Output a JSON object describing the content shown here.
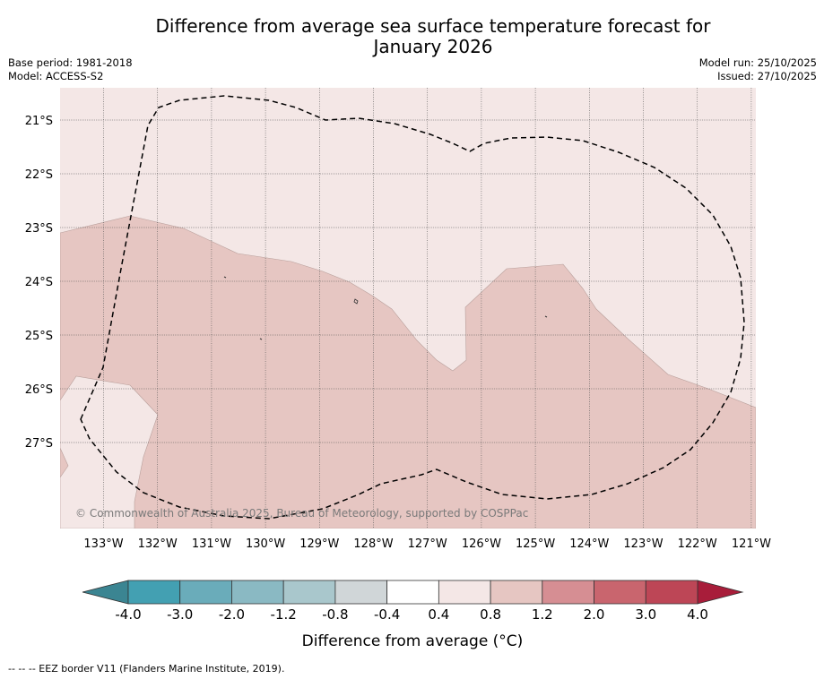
{
  "title_line1": "Difference from average sea surface temperature forecast for",
  "title_line2": "January 2026",
  "base_period": "Base period: 1981-2018",
  "model": "Model: ACCESS-S2",
  "model_run": "Model run: 25/10/2025",
  "issued": "Issued: 27/10/2025",
  "copyright": "© Commonwealth of Australia 2025, Bureau of Meteorology, supported by COSPPac",
  "lat_labels": [
    "21°S",
    "22°S",
    "23°S",
    "24°S",
    "25°S",
    "26°S",
    "27°S"
  ],
  "lon_labels": [
    "133°W",
    "132°W",
    "131°W",
    "130°W",
    "129°W",
    "128°W",
    "127°W",
    "126°W",
    "125°W",
    "124°W",
    "123°W",
    "122°W",
    "121°W"
  ],
  "colorbar": {
    "ticks": [
      "-4.0",
      "-3.0",
      "-2.0",
      "-1.2",
      "-0.8",
      "-0.4",
      "0.4",
      "0.8",
      "1.2",
      "2.0",
      "3.0",
      "4.0"
    ],
    "colors": [
      "#43a0b2",
      "#6aacba",
      "#8ab9c3",
      "#a9c7cc",
      "#d0d6d8",
      "#ffffff",
      "#f4e7e6",
      "#e6c6c2",
      "#d68e93",
      "#c9656e",
      "#bd4656"
    ],
    "extend_low_color": "#3b8592",
    "extend_high_color": "#a81d3a",
    "label": "Difference from average (°C)"
  },
  "colors": {
    "warm_fill": "#e6c6c2",
    "light_fill": "#f4e7e6",
    "grid": "#555555",
    "eez": "#000000"
  },
  "footnote": "--  --  -- EEZ border V11 (Flanders Marine Institute, 2019)."
}
